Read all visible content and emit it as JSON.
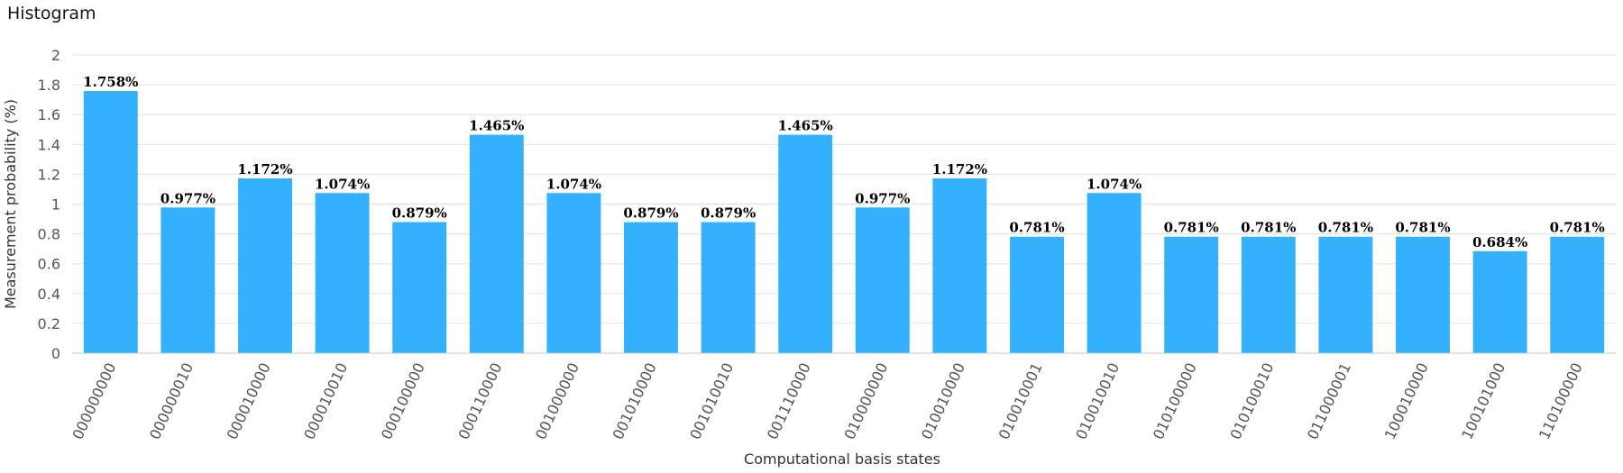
{
  "chart_data": {
    "type": "bar",
    "title": "Histogram",
    "xlabel": "Computational basis states",
    "ylabel": "Measurement probability (%)",
    "ylim": [
      0,
      2
    ],
    "yticks": [
      "0",
      "0.2",
      "0.4",
      "0.6",
      "0.8",
      "1",
      "1.2",
      "1.4",
      "1.6",
      "1.8",
      "2"
    ],
    "grid": true,
    "categories": [
      "000000000",
      "000000010",
      "000010000",
      "000010010",
      "000100000",
      "000110000",
      "001000000",
      "001010000",
      "001010010",
      "001110000",
      "010000000",
      "010010000",
      "010010001",
      "010010010",
      "010100000",
      "010100010",
      "011000001",
      "100010000",
      "100101000",
      "110100000"
    ],
    "values": [
      1.758,
      0.977,
      1.172,
      1.074,
      0.879,
      1.465,
      1.074,
      0.879,
      0.879,
      1.465,
      0.977,
      1.172,
      0.781,
      1.074,
      0.781,
      0.781,
      0.781,
      0.781,
      0.684,
      0.781
    ],
    "data_labels": [
      "1.758%",
      "0.977%",
      "1.172%",
      "1.074%",
      "0.879%",
      "1.465%",
      "1.074%",
      "0.879%",
      "0.879%",
      "1.465%",
      "0.977%",
      "1.172%",
      "0.781%",
      "1.074%",
      "0.781%",
      "0.781%",
      "0.781%",
      "0.781%",
      "0.684%",
      "0.781%"
    ],
    "bar_color": "#33b1ff",
    "grid_color": "#e0e0e0"
  }
}
